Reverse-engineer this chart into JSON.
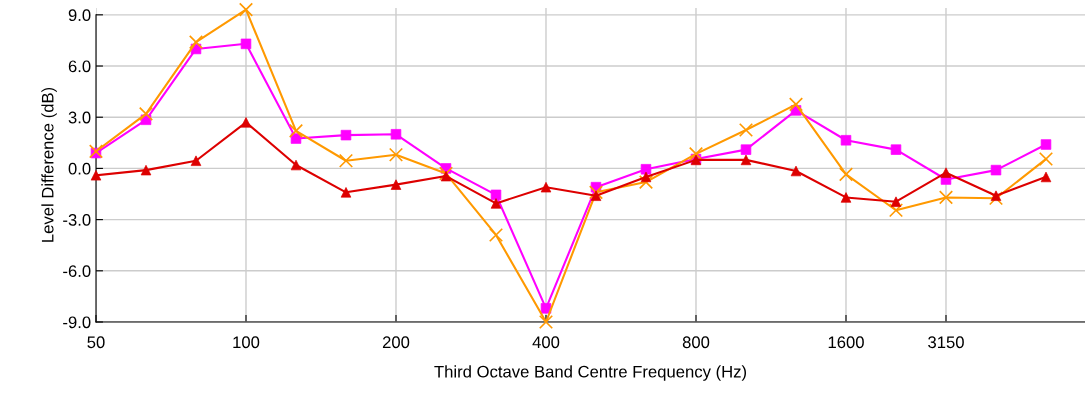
{
  "chart_data": {
    "type": "line",
    "xlabel": "Third Octave Band Centre Frequency (Hz)",
    "ylabel": "Level Difference (dB)",
    "categories": [
      "50",
      null,
      null,
      "100",
      null,
      null,
      "200",
      null,
      null,
      "400",
      null,
      null,
      "800",
      null,
      null,
      "1600",
      null,
      "3150",
      null,
      null
    ],
    "ylim": [
      -9,
      9.4
    ],
    "yticks": [
      {
        "value": -9,
        "label": "-9.0"
      },
      {
        "value": -6,
        "label": "-6.0"
      },
      {
        "value": -3,
        "label": "-3.0"
      },
      {
        "value": 0,
        "label": "0.0"
      },
      {
        "value": 3,
        "label": "3.0"
      },
      {
        "value": 6,
        "label": "6.0"
      },
      {
        "value": 9,
        "label": "9.0"
      }
    ],
    "grid": true,
    "series": [
      {
        "color": "#ff00ff",
        "marker": "square",
        "values": [
          0.9,
          2.85,
          7.0,
          7.3,
          1.75,
          1.95,
          2.0,
          0.0,
          -1.55,
          -8.2,
          -1.1,
          -0.05,
          0.55,
          1.1,
          3.4,
          1.65,
          1.1,
          -0.65,
          -0.1,
          1.4
        ]
      },
      {
        "color": "#ff9900",
        "marker": "cross",
        "values": [
          1.0,
          3.2,
          7.4,
          9.3,
          2.2,
          0.45,
          0.8,
          -0.3,
          -3.9,
          -9.0,
          -1.4,
          -0.8,
          0.85,
          2.25,
          3.75,
          -0.35,
          -2.45,
          -1.7,
          -1.75,
          0.55
        ]
      },
      {
        "color": "#dd0000",
        "marker": "triangle",
        "values": [
          -0.4,
          -0.1,
          0.45,
          2.7,
          0.2,
          -1.4,
          -0.95,
          -0.45,
          -2.05,
          -1.1,
          -1.6,
          -0.5,
          0.5,
          0.5,
          -0.15,
          -1.7,
          -1.95,
          -0.25,
          -1.6,
          -0.5
        ]
      }
    ]
  }
}
